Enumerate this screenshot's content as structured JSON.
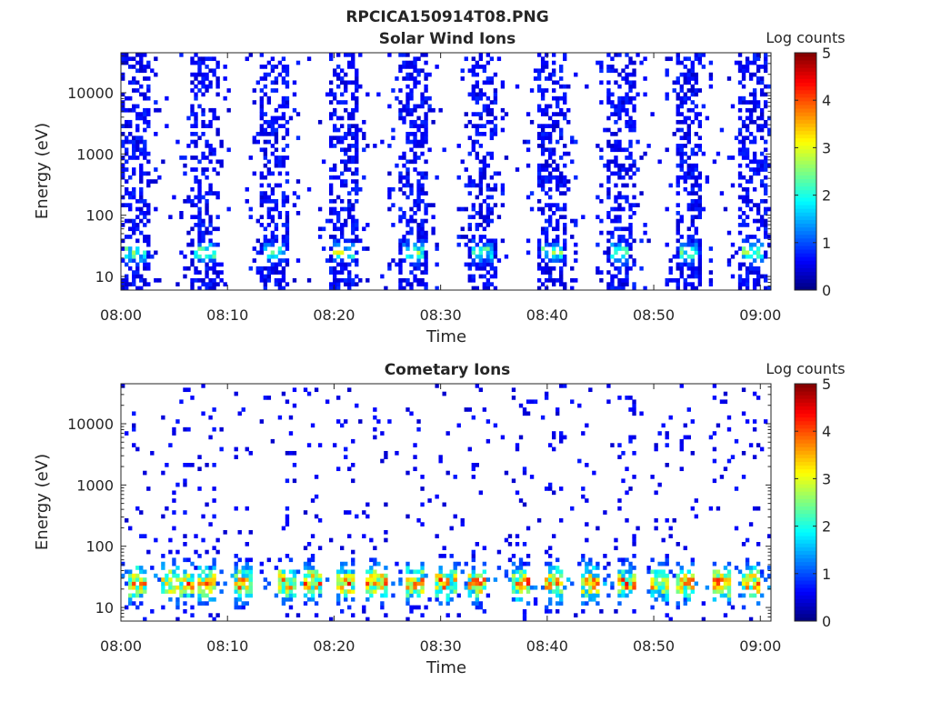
{
  "figure_title": "RPCICA150914T08.PNG",
  "colorbar_ticks": [
    "0",
    "1",
    "2",
    "3",
    "4",
    "5"
  ],
  "chart_data": [
    {
      "type": "heatmap",
      "title": "Solar Wind Ions",
      "xlabel": "Time",
      "ylabel": "Energy (eV)",
      "x_ticks": [
        "08:00",
        "08:10",
        "08:20",
        "08:30",
        "08:40",
        "08:50",
        "09:00"
      ],
      "y_ticks": [
        "10",
        "100",
        "1000",
        "10000"
      ],
      "y_scale": "log",
      "ylim": [
        6,
        45000
      ],
      "xlim_minutes": [
        0,
        61
      ],
      "colorbar_label": "Log counts",
      "clim": [
        0,
        5
      ],
      "colormap": "jet",
      "bursts_minutes": [
        1.3,
        7.8,
        14.3,
        20.8,
        27.3,
        33.8,
        40.3,
        46.8,
        53.3,
        59.3
      ],
      "peak_energy_ev": 25,
      "peak_level": 2
    },
    {
      "type": "heatmap",
      "title": "Cometary Ions",
      "xlabel": "Time",
      "ylabel": "Energy (eV)",
      "x_ticks": [
        "08:00",
        "08:10",
        "08:20",
        "08:30",
        "08:40",
        "08:50",
        "09:00"
      ],
      "y_ticks": [
        "10",
        "100",
        "1000",
        "10000"
      ],
      "y_scale": "log",
      "ylim": [
        6,
        45000
      ],
      "xlim_minutes": [
        0,
        61
      ],
      "colorbar_label": "Log counts",
      "clim": [
        0,
        5
      ],
      "colormap": "jet",
      "bursts_minutes": [
        1.5,
        4.5,
        6.0,
        8.0,
        11.5,
        15.5,
        18.0,
        21.0,
        24.0,
        27.5,
        30.5,
        33.5,
        37.5,
        40.5,
        44.0,
        47.5,
        50.5,
        53.0,
        56.5,
        59.0
      ],
      "peak_energy_ev": 25,
      "peak_level": 3.5
    }
  ]
}
